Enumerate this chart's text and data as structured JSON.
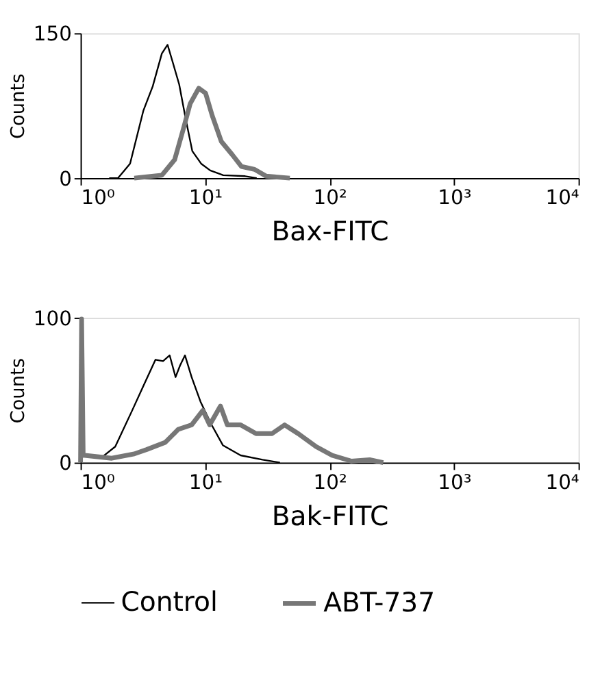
{
  "chart_data": [
    {
      "type": "line",
      "xlabel": "Bax-FITC",
      "ylabel": "Counts",
      "log": "x",
      "xlim": [
        1,
        10000
      ],
      "ylim": [
        0,
        150
      ],
      "xticks": [
        {
          "value": 1,
          "label": "10⁰"
        },
        {
          "value": 10,
          "label": "10¹"
        },
        {
          "value": 100,
          "label": "10²"
        },
        {
          "value": 1000,
          "label": "10³"
        },
        {
          "value": 10000,
          "label": "10⁴"
        }
      ],
      "yticks": [
        0,
        150
      ],
      "grid": false,
      "legend": "bottom",
      "marker": "none",
      "line_style": "solid",
      "series": [
        {
          "name": "Control",
          "color": "#000000",
          "x": [
            1.7,
            2.0,
            2.5,
            3.2,
            3.8,
            4.5,
            5.0,
            5.5,
            6.2,
            7.0,
            7.9,
            9.3,
            11,
            14,
            21,
            26
          ],
          "values": [
            0,
            0,
            15,
            70,
            95,
            129,
            138,
            120,
            97,
            61,
            28,
            15,
            8,
            3,
            2,
            0
          ]
        },
        {
          "name": "ABT-737",
          "color": "#777777",
          "x": [
            2.7,
            4.5,
            5.7,
            6.7,
            7.6,
            8.9,
            10.1,
            11.4,
            13.5,
            16.6,
            19.6,
            25,
            31,
            48
          ],
          "values": [
            0,
            3,
            19,
            51,
            77,
            93,
            88,
            65,
            38,
            24,
            12,
            9,
            2,
            0
          ]
        }
      ]
    },
    {
      "type": "line",
      "xlabel": "Bak-FITC",
      "ylabel": "Counts",
      "log": "x",
      "xlim": [
        1,
        10000
      ],
      "ylim": [
        0,
        100
      ],
      "xticks": [
        {
          "value": 1,
          "label": "10⁰"
        },
        {
          "value": 10,
          "label": "10¹"
        },
        {
          "value": 100,
          "label": "10²"
        },
        {
          "value": 1000,
          "label": "10³"
        },
        {
          "value": 10000,
          "label": "10⁴"
        }
      ],
      "yticks": [
        0,
        100
      ],
      "grid": false,
      "legend": "bottom",
      "marker": "none",
      "line_style": "solid",
      "series": [
        {
          "name": "Control",
          "color": "#000000",
          "x": [
            1.1,
            1.5,
            1.9,
            2.6,
            3.2,
            4.0,
            4.6,
            5.2,
            5.8,
            6.3,
            6.9,
            7.8,
            9.2,
            11.3,
            13.9,
            19.3,
            29,
            40
          ],
          "values": [
            5,
            4,
            11,
            36,
            53,
            71,
            70,
            74,
            59,
            67,
            74,
            59,
            42,
            26,
            12,
            5,
            2,
            0
          ]
        },
        {
          "name": "ABT-737",
          "color": "#777777",
          "x": [
            1.0,
            1.02,
            1.05,
            1.08,
            1.78,
            2.7,
            3.4,
            4.8,
            6.1,
            7.8,
            9.6,
            10.9,
            13.3,
            15.1,
            19.3,
            25.7,
            34.5,
            43.6,
            56,
            78,
            105,
            150,
            210,
            270
          ],
          "values": [
            0,
            99,
            5,
            5,
            3,
            6,
            9,
            14,
            23,
            26,
            36,
            26,
            39,
            26,
            26,
            20,
            20,
            26,
            20,
            11,
            5,
            1,
            2,
            0
          ]
        }
      ]
    }
  ]
}
